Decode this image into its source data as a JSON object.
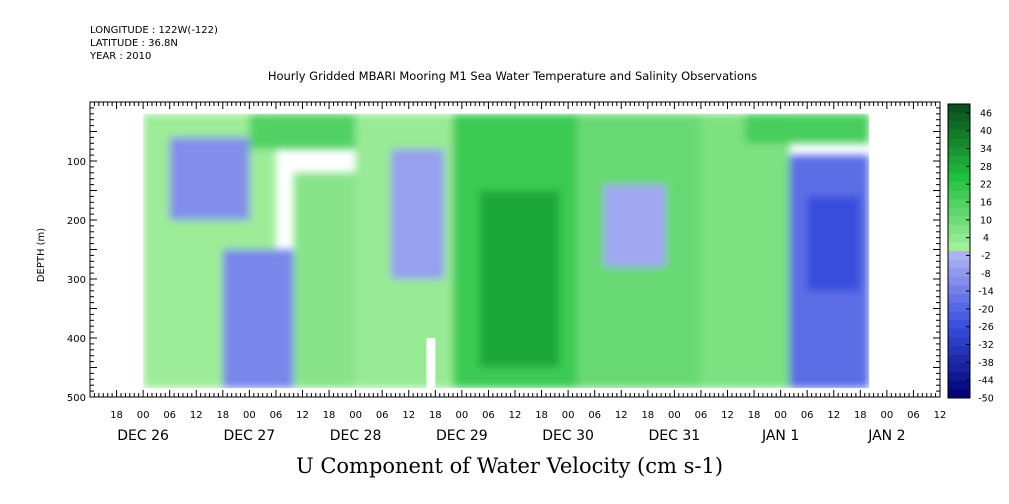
{
  "header": {
    "longitude": "LONGITUDE : 122W(-122)",
    "latitude": "LATITUDE : 36.8N",
    "year": "YEAR : 2010"
  },
  "chart_data": {
    "type": "heatmap",
    "title": "Hourly Gridded MBARI Mooring M1 Sea Water Temperature and Salinity Observations",
    "variable_title": "U Component of Water Velocity (cm s-1)",
    "ylabel": "DEPTH (m)",
    "y_axis": {
      "range": [
        0,
        500
      ],
      "reversed": true,
      "ticks": [
        100,
        200,
        300,
        400,
        500
      ]
    },
    "x_axis": {
      "unit": "hours since Dec 26 00:00",
      "range": [
        -12,
        180
      ],
      "hour_ticks": [
        {
          "h": -6,
          "label": "18"
        },
        {
          "h": 0,
          "label": "00"
        },
        {
          "h": 6,
          "label": "06"
        },
        {
          "h": 12,
          "label": "12"
        },
        {
          "h": 18,
          "label": "18"
        },
        {
          "h": 24,
          "label": "00"
        },
        {
          "h": 30,
          "label": "06"
        },
        {
          "h": 36,
          "label": "12"
        },
        {
          "h": 42,
          "label": "18"
        },
        {
          "h": 48,
          "label": "00"
        },
        {
          "h": 54,
          "label": "06"
        },
        {
          "h": 60,
          "label": "12"
        },
        {
          "h": 66,
          "label": "18"
        },
        {
          "h": 72,
          "label": "00"
        },
        {
          "h": 78,
          "label": "06"
        },
        {
          "h": 84,
          "label": "12"
        },
        {
          "h": 90,
          "label": "18"
        },
        {
          "h": 96,
          "label": "00"
        },
        {
          "h": 102,
          "label": "06"
        },
        {
          "h": 108,
          "label": "12"
        },
        {
          "h": 114,
          "label": "18"
        },
        {
          "h": 120,
          "label": "00"
        },
        {
          "h": 126,
          "label": "06"
        },
        {
          "h": 132,
          "label": "12"
        },
        {
          "h": 138,
          "label": "18"
        },
        {
          "h": 144,
          "label": "00"
        },
        {
          "h": 150,
          "label": "06"
        },
        {
          "h": 156,
          "label": "12"
        },
        {
          "h": 162,
          "label": "18"
        },
        {
          "h": 168,
          "label": "00"
        },
        {
          "h": 174,
          "label": "06"
        },
        {
          "h": 180,
          "label": "12"
        }
      ],
      "date_labels": [
        {
          "h": 0,
          "label": "DEC 26"
        },
        {
          "h": 24,
          "label": "DEC 27"
        },
        {
          "h": 48,
          "label": "DEC 28"
        },
        {
          "h": 72,
          "label": "DEC 29"
        },
        {
          "h": 96,
          "label": "DEC 30"
        },
        {
          "h": 120,
          "label": "DEC 31"
        },
        {
          "h": 144,
          "label": "JAN  1"
        },
        {
          "h": 168,
          "label": "JAN  2"
        }
      ]
    },
    "data_extent": {
      "hours": [
        0,
        164
      ],
      "depth_m": [
        20,
        485
      ]
    },
    "colorbar": {
      "labels": [
        "46",
        "40",
        "34",
        "28",
        "22",
        "16",
        "10",
        "4",
        "-2",
        "-8",
        "-14",
        "-20",
        "-26",
        "-32",
        "-38",
        "-44",
        "-50"
      ],
      "min": -50,
      "max": 50
    },
    "colors": {
      "positive_dark": "#0a4a1a",
      "positive_mid": "#20c040",
      "positive_light": "#a8f0a0",
      "negative_light": "#b4b8f4",
      "negative_mid": "#3a50e0",
      "negative_dark": "#000070"
    },
    "regions": [
      {
        "h0": 0,
        "h1": 30,
        "d0": 20,
        "d1": 485,
        "value": 2
      },
      {
        "h0": 6,
        "h1": 24,
        "d0": 60,
        "d1": 200,
        "value": -10
      },
      {
        "h0": 18,
        "h1": 34,
        "d0": 250,
        "d1": 485,
        "value": -12
      },
      {
        "h0": 24,
        "h1": 48,
        "d0": 20,
        "d1": 80,
        "value": 16
      },
      {
        "h0": 34,
        "h1": 48,
        "d0": 120,
        "d1": 485,
        "value": 6
      },
      {
        "h0": 48,
        "h1": 70,
        "d0": 20,
        "d1": 485,
        "value": 3
      },
      {
        "h0": 56,
        "h1": 68,
        "d0": 80,
        "d1": 300,
        "value": -6
      },
      {
        "h0": 70,
        "h1": 98,
        "d0": 20,
        "d1": 485,
        "value": 20
      },
      {
        "h0": 76,
        "h1": 94,
        "d0": 150,
        "d1": 450,
        "value": 30
      },
      {
        "h0": 98,
        "h1": 126,
        "d0": 20,
        "d1": 485,
        "value": 12
      },
      {
        "h0": 104,
        "h1": 118,
        "d0": 140,
        "d1": 280,
        "value": -4
      },
      {
        "h0": 126,
        "h1": 146,
        "d0": 20,
        "d1": 485,
        "value": 8
      },
      {
        "h0": 136,
        "h1": 164,
        "d0": 20,
        "d1": 70,
        "value": 18
      },
      {
        "h0": 146,
        "h1": 164,
        "d0": 90,
        "d1": 485,
        "value": -18
      },
      {
        "h0": 150,
        "h1": 162,
        "d0": 160,
        "d1": 320,
        "value": -26
      }
    ],
    "missing": [
      {
        "h0": 64,
        "h1": 66,
        "d0": 400,
        "d1": 485
      }
    ]
  }
}
